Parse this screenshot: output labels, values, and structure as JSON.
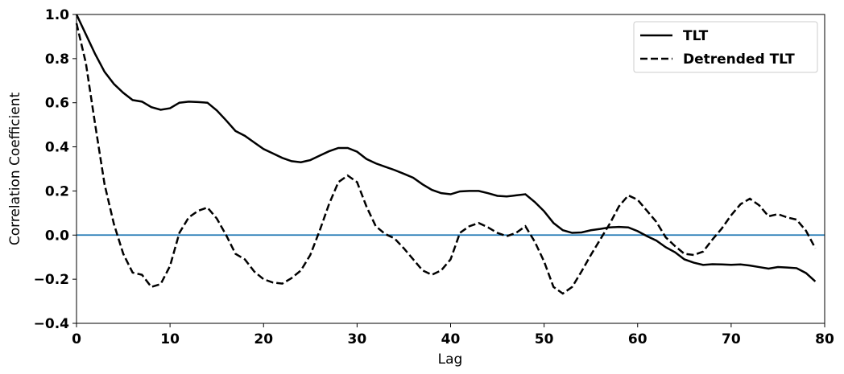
{
  "chart_data": {
    "type": "line",
    "xlabel": "Lag",
    "ylabel": "Correlation Coefficient",
    "x": [
      0,
      1,
      2,
      3,
      4,
      5,
      6,
      7,
      8,
      9,
      10,
      11,
      12,
      13,
      14,
      15,
      16,
      17,
      18,
      19,
      20,
      21,
      22,
      23,
      24,
      25,
      26,
      27,
      28,
      29,
      30,
      31,
      32,
      33,
      34,
      35,
      36,
      37,
      38,
      39,
      40,
      41,
      42,
      43,
      44,
      45,
      46,
      47,
      48,
      49,
      50,
      51,
      52,
      53,
      54,
      55,
      56,
      57,
      58,
      59,
      60,
      61,
      62,
      63,
      64,
      65,
      66,
      67,
      68,
      69,
      70,
      71,
      72,
      73,
      74,
      75,
      76,
      77,
      78,
      79
    ],
    "series": [
      {
        "name": "TLT",
        "color": "#000000",
        "dash": "solid",
        "values": [
          1.0,
          0.91,
          0.82,
          0.74,
          0.685,
          0.645,
          0.612,
          0.605,
          0.58,
          0.568,
          0.575,
          0.6,
          0.605,
          0.603,
          0.6,
          0.565,
          0.52,
          0.472,
          0.45,
          0.42,
          0.39,
          0.37,
          0.35,
          0.335,
          0.33,
          0.34,
          0.36,
          0.38,
          0.395,
          0.395,
          0.378,
          0.345,
          0.325,
          0.31,
          0.295,
          0.278,
          0.26,
          0.23,
          0.205,
          0.19,
          0.185,
          0.198,
          0.2,
          0.2,
          0.19,
          0.178,
          0.175,
          0.18,
          0.185,
          0.15,
          0.108,
          0.055,
          0.022,
          0.01,
          0.012,
          0.022,
          0.028,
          0.035,
          0.037,
          0.035,
          0.018,
          -0.005,
          -0.025,
          -0.055,
          -0.078,
          -0.11,
          -0.125,
          -0.135,
          -0.132,
          -0.133,
          -0.135,
          -0.133,
          -0.138,
          -0.145,
          -0.152,
          -0.145,
          -0.147,
          -0.15,
          -0.172,
          -0.21
        ]
      },
      {
        "name": "Detrended TLT",
        "color": "#000000",
        "dash": "dashed",
        "values": [
          0.96,
          0.78,
          0.5,
          0.23,
          0.05,
          -0.085,
          -0.17,
          -0.18,
          -0.235,
          -0.222,
          -0.14,
          0.01,
          0.08,
          0.11,
          0.125,
          0.075,
          0.0,
          -0.085,
          -0.11,
          -0.165,
          -0.2,
          -0.215,
          -0.22,
          -0.195,
          -0.16,
          -0.09,
          0.02,
          0.14,
          0.24,
          0.27,
          0.24,
          0.13,
          0.04,
          0.005,
          -0.015,
          -0.06,
          -0.11,
          -0.16,
          -0.18,
          -0.16,
          -0.11,
          0.01,
          0.04,
          0.055,
          0.035,
          0.01,
          -0.005,
          0.01,
          0.04,
          -0.03,
          -0.12,
          -0.235,
          -0.265,
          -0.235,
          -0.165,
          -0.09,
          -0.02,
          0.05,
          0.13,
          0.18,
          0.16,
          0.11,
          0.06,
          -0.01,
          -0.05,
          -0.085,
          -0.09,
          -0.075,
          -0.02,
          0.03,
          0.09,
          0.14,
          0.165,
          0.135,
          0.085,
          0.095,
          0.08,
          0.07,
          0.02,
          -0.06
        ]
      }
    ],
    "reference_line": {
      "value": 0,
      "color": "#1f77b4"
    },
    "xlim": [
      0,
      80
    ],
    "xticks": [
      0,
      10,
      20,
      30,
      40,
      50,
      60,
      70,
      80
    ],
    "ylim": [
      -0.4,
      1.0
    ],
    "yticks": [
      {
        "value": -0.4,
        "label": "−0.4"
      },
      {
        "value": -0.2,
        "label": "−0.2"
      },
      {
        "value": 0,
        "label": "0.0"
      },
      {
        "value": 0.2,
        "label": "0.2"
      },
      {
        "value": 0.4,
        "label": "0.4"
      },
      {
        "value": 0.6,
        "label": "0.6"
      },
      {
        "value": 0.8,
        "label": "0.8"
      },
      {
        "value": 1.0,
        "label": "1.0"
      }
    ],
    "grid": false,
    "legend": "upper right"
  }
}
